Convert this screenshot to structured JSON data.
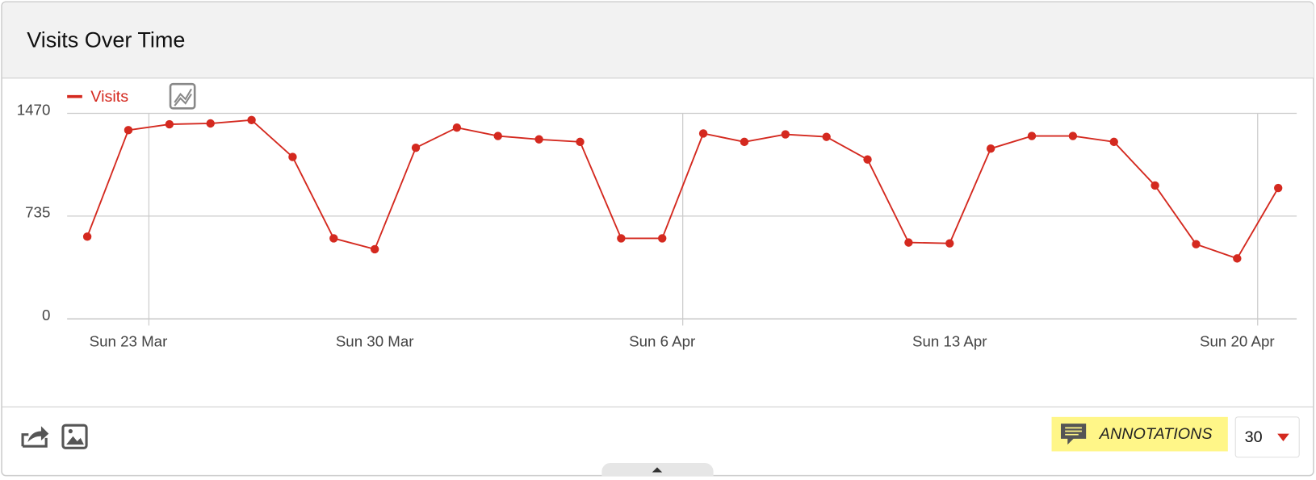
{
  "widget": {
    "title": "Visits Over Time"
  },
  "chart_data": {
    "type": "line",
    "categories": [
      null,
      "Sun 23 Mar",
      null,
      null,
      null,
      null,
      null,
      "Sun 30 Mar",
      null,
      null,
      null,
      null,
      null,
      null,
      "Sun 6 Apr",
      null,
      null,
      null,
      null,
      null,
      null,
      "Sun 13 Apr",
      null,
      null,
      null,
      null,
      null,
      null,
      "Sun 20 Apr",
      null
    ],
    "series": [
      {
        "name": "Visits",
        "color": "#d4291f",
        "values": [
          588,
          1350,
          1392,
          1398,
          1422,
          1158,
          576,
          498,
          1224,
          1368,
          1308,
          1284,
          1266,
          576,
          576,
          1326,
          1266,
          1320,
          1302,
          1140,
          546,
          540,
          1218,
          1308,
          1308,
          1266,
          954,
          534,
          432,
          936
        ]
      }
    ],
    "ylim": [
      0,
      1470
    ],
    "yticks": [
      0,
      735,
      1470
    ],
    "grid": true
  },
  "footer": {
    "annotations": "ANNOTATIONS",
    "period_limit": 30
  }
}
